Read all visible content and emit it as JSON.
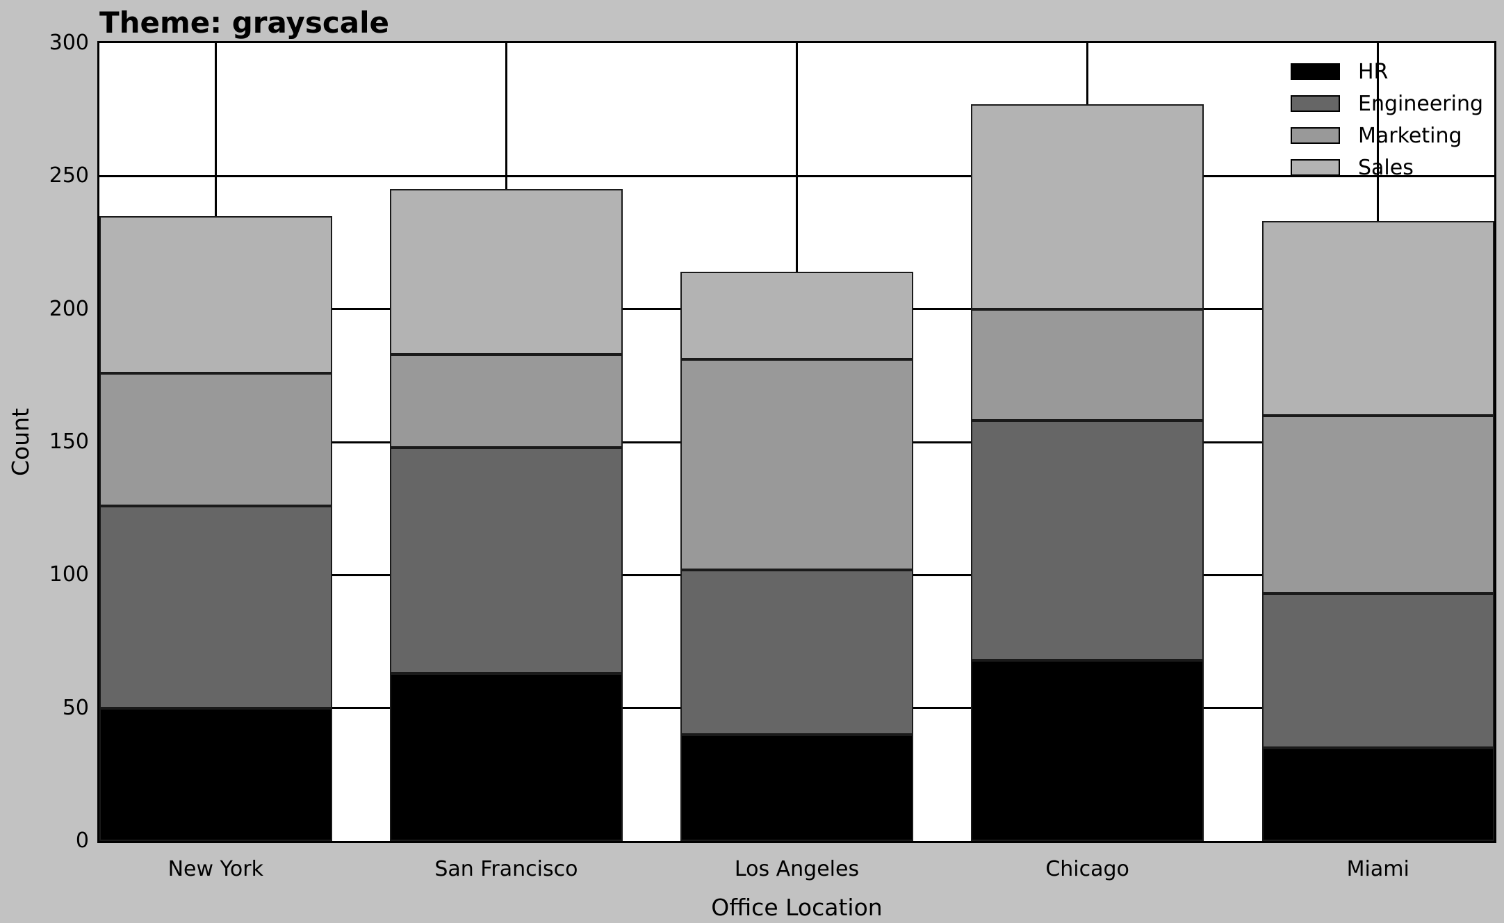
{
  "title": "Theme: grayscale",
  "chart_data": {
    "type": "bar",
    "stacked": true,
    "title": "Theme: grayscale",
    "xlabel": "Office Location",
    "ylabel": "Count",
    "categories": [
      "New York",
      "San Francisco",
      "Los Angeles",
      "Chicago",
      "Miami"
    ],
    "series": [
      {
        "name": "HR",
        "color": "#000000",
        "values": [
          50,
          63,
          40,
          68,
          35
        ]
      },
      {
        "name": "Engineering",
        "color": "#666666",
        "values": [
          76,
          85,
          62,
          90,
          58
        ]
      },
      {
        "name": "Marketing",
        "color": "#999999",
        "values": [
          50,
          35,
          79,
          42,
          67
        ]
      },
      {
        "name": "Sales",
        "color": "#b3b3b3",
        "values": [
          59,
          62,
          33,
          77,
          73
        ]
      }
    ],
    "totals": [
      235,
      245,
      214,
      277,
      233
    ],
    "ylim": [
      0,
      300
    ],
    "yticks": [
      0,
      50,
      100,
      150,
      200,
      250,
      300
    ],
    "grid": true,
    "legend_position": "upper right"
  },
  "colors": {
    "figure_bg": "#c2c2c2",
    "plot_bg": "#ffffff",
    "grid": "#000000",
    "bar_edge": "#1a1a1a",
    "text": "#000000"
  }
}
